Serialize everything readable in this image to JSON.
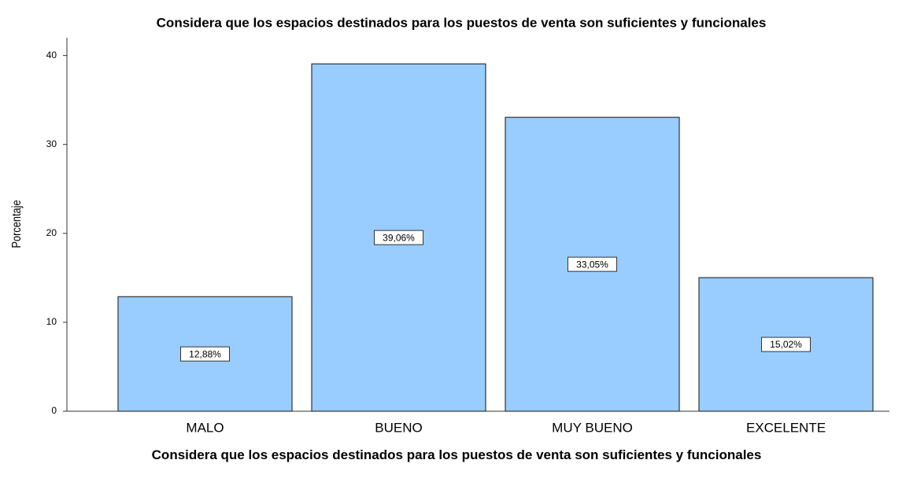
{
  "chart_data": {
    "type": "bar",
    "title": "Considera que los espacios destinados para los puestos de venta son suficientes y funcionales",
    "x_label": "Considera que los espacios destinados para los puestos de venta son suficientes y funcionales",
    "y_label": "Porcentaje",
    "categories": [
      "MALO",
      "BUENO",
      "MUY BUENO",
      "EXCELENTE"
    ],
    "values": [
      12.88,
      39.06,
      33.05,
      15.02
    ],
    "value_labels": [
      "12,88%",
      "39,06%",
      "33,05%",
      "15,02%"
    ],
    "color": "#99ccff",
    "ylim": [
      0,
      42
    ],
    "yticks": [
      0,
      10,
      20,
      30,
      40
    ],
    "grid": false
  }
}
